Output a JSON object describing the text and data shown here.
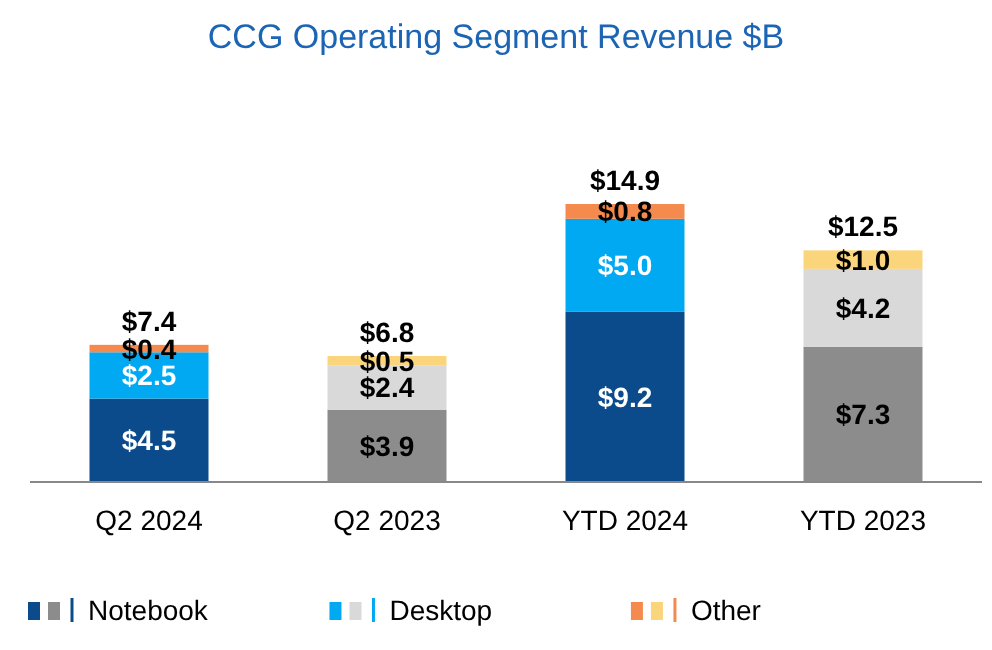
{
  "chart_data": {
    "type": "bar",
    "title": "CCG Operating Segment Revenue $B",
    "stacked": true,
    "categories": [
      "Q2 2024",
      "Q2 2023",
      "YTD 2024",
      "YTD 2023"
    ],
    "series": [
      {
        "name": "Notebook",
        "color": "#0b4a8b",
        "colors": [
          "#0b4a8b",
          "#8c8c8c",
          "#0b4a8b",
          "#8c8c8c"
        ],
        "values": [
          4.5,
          3.9,
          9.2,
          7.3
        ],
        "value_labels": [
          "$4.5",
          "$3.9",
          "$9.2",
          "$7.3"
        ]
      },
      {
        "name": "Desktop",
        "color": "#00a9f1",
        "colors": [
          "#00a9f1",
          "#d9d9d9",
          "#00a9f1",
          "#d9d9d9"
        ],
        "values": [
          2.5,
          2.4,
          5.0,
          4.2
        ],
        "value_labels": [
          "$2.5",
          "$2.4",
          "$5.0",
          "$4.2"
        ]
      },
      {
        "name": "Other",
        "color": "#f58a4e",
        "colors": [
          "#f58a4e",
          "#fbd57c",
          "#f58a4e",
          "#fbd57c"
        ],
        "values": [
          0.4,
          0.5,
          0.8,
          1.0
        ],
        "value_labels": [
          "$0.4",
          "$0.5",
          "$0.8",
          "$1.0"
        ]
      }
    ],
    "totals": [
      "$7.4",
      "$6.8",
      "$14.9",
      "$12.5"
    ],
    "legend": "bottom",
    "grid": false
  }
}
